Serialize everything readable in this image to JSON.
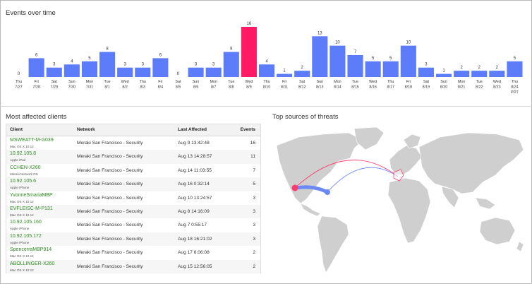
{
  "events_panel": {
    "title": "Events over time",
    "chart_data": {
      "type": "bar",
      "categories": [
        [
          "Thu",
          "7/27"
        ],
        [
          "Fri",
          "7/28"
        ],
        [
          "Sat",
          "7/29"
        ],
        [
          "Sun",
          "7/30"
        ],
        [
          "Mon",
          "7/31"
        ],
        [
          "Tue",
          "8/1"
        ],
        [
          "Wed",
          "8/2"
        ],
        [
          "Thu",
          "8/3"
        ],
        [
          "Fri",
          "8/4"
        ],
        [
          "Sat",
          "8/5"
        ],
        [
          "Sun",
          "8/6"
        ],
        [
          "Mon",
          "8/7"
        ],
        [
          "Tue",
          "8/8"
        ],
        [
          "Wed",
          "8/9"
        ],
        [
          "Thu",
          "8/10"
        ],
        [
          "Fri",
          "8/11"
        ],
        [
          "Sat",
          "8/12"
        ],
        [
          "Sun",
          "8/13"
        ],
        [
          "Mon",
          "8/14"
        ],
        [
          "Tue",
          "8/15"
        ],
        [
          "Wed",
          "8/16"
        ],
        [
          "Thu",
          "8/17"
        ],
        [
          "Fri",
          "8/18"
        ],
        [
          "Sat",
          "8/19"
        ],
        [
          "Sun",
          "8/20"
        ],
        [
          "Mon",
          "8/21"
        ],
        [
          "Tue",
          "8/22"
        ],
        [
          "Wed",
          "8/23"
        ],
        [
          "Thu",
          "8/24",
          "PDT"
        ]
      ],
      "values": [
        0,
        6,
        3,
        4,
        5,
        8,
        3,
        3,
        6,
        0,
        3,
        3,
        8,
        16,
        4,
        1,
        2,
        13,
        10,
        7,
        5,
        5,
        10,
        3,
        1,
        2,
        2,
        2,
        5
      ],
      "highlight_index": 13,
      "ylim": [
        0,
        16
      ],
      "bar_color": "#5c7cfa",
      "highlight_color": "#ff1a66",
      "title": "",
      "xlabel": "",
      "ylabel": ""
    }
  },
  "clients_panel": {
    "title": "Most affected clients",
    "columns": {
      "client": "Client",
      "network": "Network",
      "last_affected": "Last Affected",
      "events": "Events"
    },
    "rows": [
      {
        "name": "MSWEATT-M-G039",
        "os": "Mac OS X 10.12",
        "network": "Meraki San Francisco - Security",
        "last": "Aug 9 13:42:48",
        "events": "16"
      },
      {
        "name": "10.92.105.8",
        "os": "Apple iPad",
        "network": "Meraki San Francisco - Security",
        "last": "Aug 13 14:28:57",
        "events": "11"
      },
      {
        "name": "CCHEN-X260",
        "os": "Meraki Network OS",
        "network": "Meraki San Francisco - Security",
        "last": "Aug 14 11:03:55",
        "events": "7"
      },
      {
        "name": "10.92.105.6",
        "os": "Apple iPhone",
        "network": "Meraki San Francisco - Security",
        "last": "Aug 16 0:32:14",
        "events": "5"
      },
      {
        "name": "YvonneSmariaMBP",
        "os": "Mac OS X 10.12",
        "network": "Meraki San Francisco - Security",
        "last": "Aug 10 13:24:57",
        "events": "3"
      },
      {
        "name": "EVFLEISC-M-P131",
        "os": "Mac OS X 10.12",
        "network": "Meraki San Francisco - Security",
        "last": "Aug 8 14:16:09",
        "events": "3"
      },
      {
        "name": "10.92.105.160",
        "os": "Apple iPhone",
        "network": "Meraki San Francisco - Security",
        "last": "Aug 7 0:55:17",
        "events": "3"
      },
      {
        "name": "10.92.105.172",
        "os": "Apple iPhone",
        "network": "Meraki San Francisco - Security",
        "last": "Aug 18 16:21:02",
        "events": "3"
      },
      {
        "name": "SpencerraMBP914",
        "os": "Mac OS X 10.12",
        "network": "Meraki San Francisco - Security",
        "last": "Aug 17 6:06:08",
        "events": "2"
      },
      {
        "name": "ABOLLINGER-X260",
        "os": "Mac OS X 10.12",
        "network": "Meraki San Francisco - Security",
        "last": "Aug 15 12:56:05",
        "events": "2"
      }
    ]
  },
  "threats_panel": {
    "title": "Top sources of threats",
    "land_color": "#cfcfcf",
    "arc_red": "#ff3a6e",
    "arc_blue": "#6b88f5"
  }
}
